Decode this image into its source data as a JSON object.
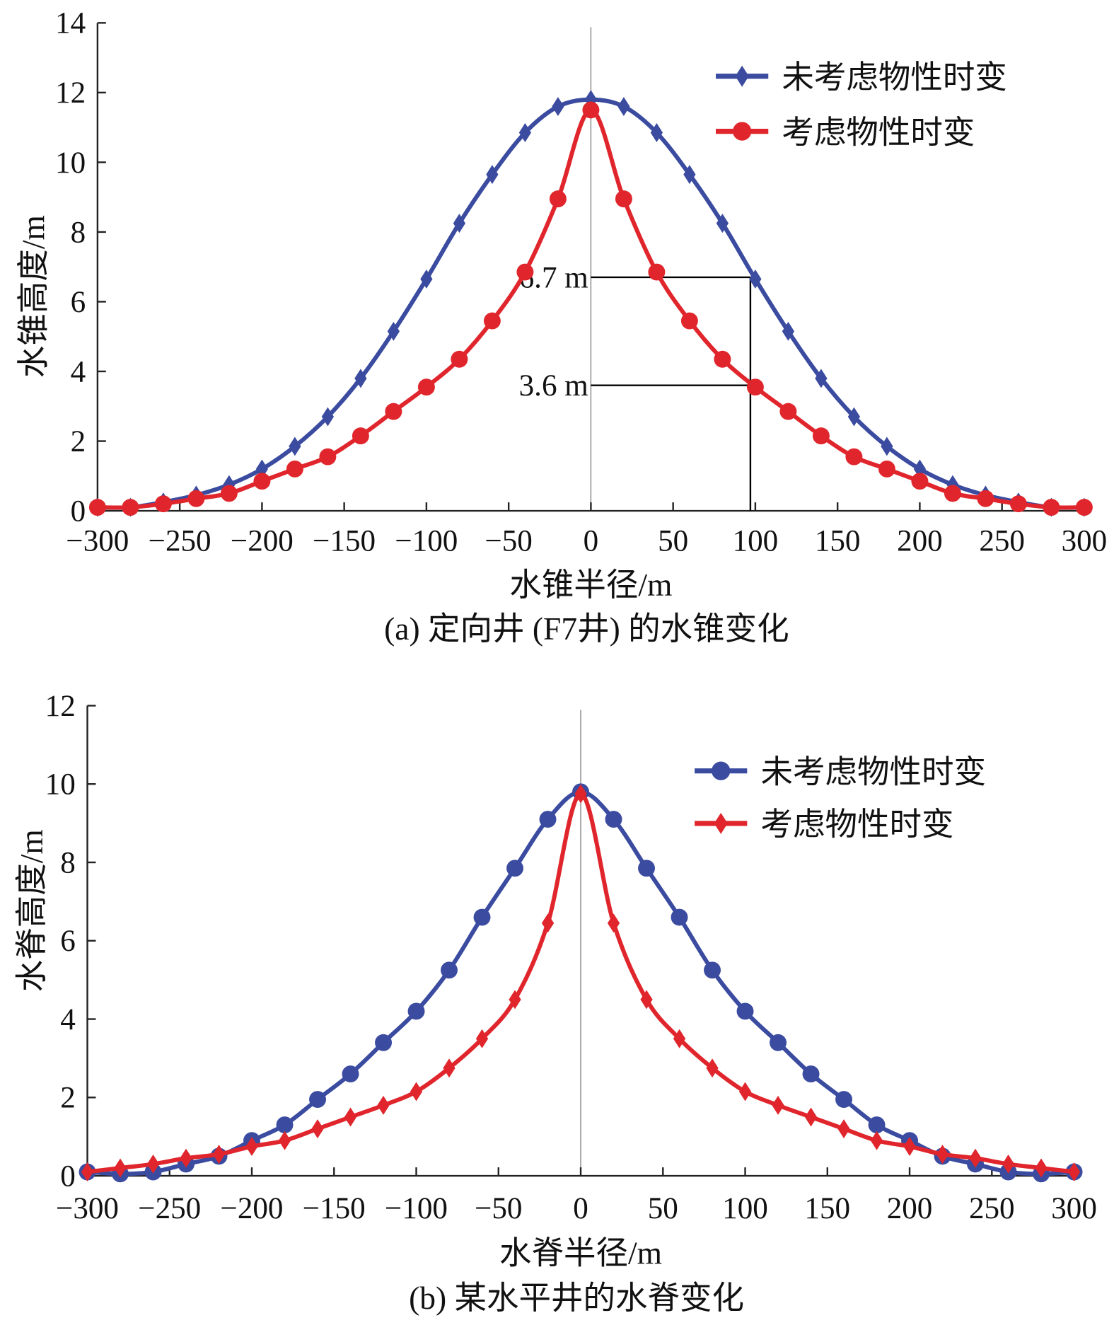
{
  "chart_data": [
    {
      "type": "line",
      "caption": "(a) 定向井 (F7井) 的水锥变化",
      "xlabel": "水锥半径/m",
      "ylabel": "水锥高度/m",
      "xlim": [
        -300,
        300
      ],
      "ylim": [
        0,
        14
      ],
      "xticks": [
        -300,
        -250,
        -200,
        -150,
        -100,
        -50,
        0,
        50,
        100,
        150,
        200,
        250,
        300
      ],
      "xtick_labels": [
        "−300",
        "−250",
        "−200",
        "−150",
        "−100",
        "−50",
        "0",
        "50",
        "100",
        "150",
        "200",
        "250",
        "300"
      ],
      "yticks": [
        0,
        2,
        4,
        6,
        8,
        10,
        12,
        14
      ],
      "legend": "top-right",
      "grid": false,
      "x": [
        -300,
        -280,
        -260,
        -240,
        -220,
        -200,
        -180,
        -160,
        -140,
        -120,
        -100,
        -80,
        -60,
        -40,
        -20,
        0,
        20,
        40,
        60,
        80,
        100,
        120,
        140,
        160,
        180,
        200,
        220,
        240,
        260,
        280,
        300
      ],
      "series": [
        {
          "name": "未考虑物性时变",
          "color": "#3a4ba0",
          "marker": "diamond",
          "values": [
            0.1,
            0.1,
            0.25,
            0.45,
            0.75,
            1.2,
            1.85,
            2.7,
            3.8,
            5.15,
            6.65,
            8.25,
            9.65,
            10.85,
            11.6,
            11.8,
            11.6,
            10.85,
            9.65,
            8.25,
            6.65,
            5.15,
            3.8,
            2.7,
            1.85,
            1.2,
            0.75,
            0.45,
            0.25,
            0.1,
            0.1
          ]
        },
        {
          "name": "考虑物性时变",
          "color": "#e0262c",
          "marker": "circle",
          "values": [
            0.1,
            0.1,
            0.2,
            0.35,
            0.5,
            0.85,
            1.2,
            1.55,
            2.15,
            2.85,
            3.55,
            4.35,
            5.45,
            6.85,
            8.95,
            11.5,
            8.95,
            6.85,
            5.45,
            4.35,
            3.55,
            2.85,
            2.15,
            1.55,
            1.2,
            0.85,
            0.5,
            0.35,
            0.2,
            0.1,
            0.1
          ]
        }
      ],
      "annotations": [
        {
          "text": "6.7 m",
          "y": 6.7,
          "x_end": 97
        },
        {
          "text": "3.6 m",
          "y": 3.6,
          "x_end": 97
        }
      ]
    },
    {
      "type": "line",
      "caption": "(b) 某水平井的水脊变化",
      "xlabel": "水脊半径/m",
      "ylabel": "水脊高度/m",
      "xlim": [
        -300,
        300
      ],
      "ylim": [
        0,
        12
      ],
      "xticks": [
        -300,
        -250,
        -200,
        -150,
        -100,
        -50,
        0,
        50,
        100,
        150,
        200,
        250,
        300
      ],
      "xtick_labels": [
        "−300",
        "−250",
        "−200",
        "−150",
        "−100",
        "−50",
        "0",
        "50",
        "100",
        "150",
        "200",
        "250",
        "300"
      ],
      "yticks": [
        0,
        2,
        4,
        6,
        8,
        10,
        12
      ],
      "legend": "top-right",
      "grid": false,
      "x": [
        -300,
        -280,
        -260,
        -240,
        -220,
        -200,
        -180,
        -160,
        -140,
        -120,
        -100,
        -80,
        -60,
        -40,
        -20,
        0,
        20,
        40,
        60,
        80,
        100,
        120,
        140,
        160,
        180,
        200,
        220,
        240,
        260,
        280,
        300
      ],
      "series": [
        {
          "name": "未考虑物性时变",
          "color": "#3a4ba0",
          "marker": "circle",
          "values": [
            0.1,
            0.05,
            0.1,
            0.3,
            0.5,
            0.9,
            1.3,
            1.95,
            2.6,
            3.4,
            4.2,
            5.25,
            6.6,
            7.85,
            9.1,
            9.8,
            9.1,
            7.85,
            6.6,
            5.25,
            4.2,
            3.4,
            2.6,
            1.95,
            1.3,
            0.9,
            0.5,
            0.3,
            0.1,
            0.05,
            0.1
          ]
        },
        {
          "name": "考虑物性时变",
          "color": "#e0262c",
          "marker": "diamond",
          "values": [
            0.1,
            0.2,
            0.3,
            0.45,
            0.55,
            0.75,
            0.9,
            1.2,
            1.5,
            1.8,
            2.15,
            2.75,
            3.5,
            4.5,
            6.45,
            9.75,
            6.45,
            4.5,
            3.5,
            2.75,
            2.15,
            1.8,
            1.5,
            1.2,
            0.9,
            0.75,
            0.55,
            0.45,
            0.3,
            0.2,
            0.1
          ]
        }
      ],
      "annotations": []
    }
  ]
}
